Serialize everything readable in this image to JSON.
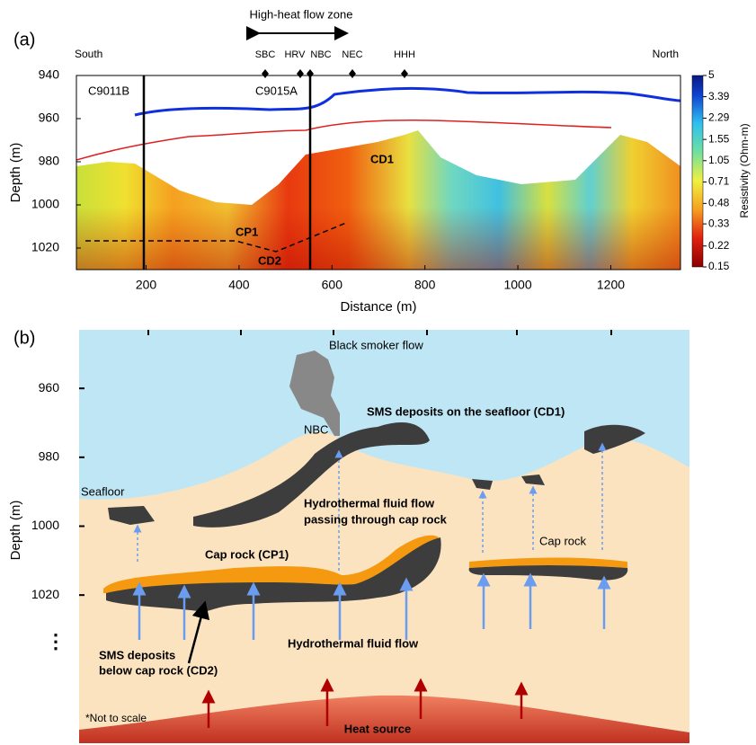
{
  "panel_a": {
    "label": "(a)",
    "zone_label": "High-heat flow zone",
    "south": "South",
    "north": "North",
    "vents": [
      "SBC",
      "HRV",
      "NBC",
      "NEC",
      "HHH"
    ],
    "boreholes": [
      "C9011B",
      "C9015A"
    ],
    "features": [
      "CD1",
      "CP1",
      "CD2"
    ],
    "xlabel": "Distance (m)",
    "ylabel": "Depth (m)",
    "xlim": [
      50,
      1350
    ],
    "ylim": [
      940,
      1030
    ],
    "xticks": [
      200,
      400,
      600,
      800,
      1000,
      1200
    ],
    "yticks": [
      940,
      960,
      980,
      1000,
      1020
    ],
    "colorbar": {
      "label": "Resistivity (Ohm-m)",
      "scale": "log",
      "lim": [
        0.15,
        5
      ],
      "ticks": [
        5,
        3.39,
        2.29,
        1.55,
        1.05,
        0.71,
        0.48,
        0.33,
        0.22,
        0.15
      ]
    }
  },
  "panel_b": {
    "label": "(b)",
    "ylabel": "Depth (m)",
    "ylim": [
      943,
      1063
    ],
    "yticks": [
      960,
      980,
      1000,
      1020
    ],
    "continuation": "⋮",
    "texts": {
      "smoker": "Black smoker flow",
      "nbc": "NBC",
      "cd1": "SMS deposits on the seafloor (CD1)",
      "seafloor": "Seafloor",
      "passing": [
        "Hydrothermal fluid flow",
        "passing through cap rock"
      ],
      "cp1": "Cap rock (CP1)",
      "caprock": "Cap rock",
      "flow": "Hydrothermal fluid flow",
      "cd2": [
        "SMS deposits",
        "below cap rock (CD2)"
      ],
      "note": "*Not to scale",
      "heat": "Heat source"
    }
  }
}
